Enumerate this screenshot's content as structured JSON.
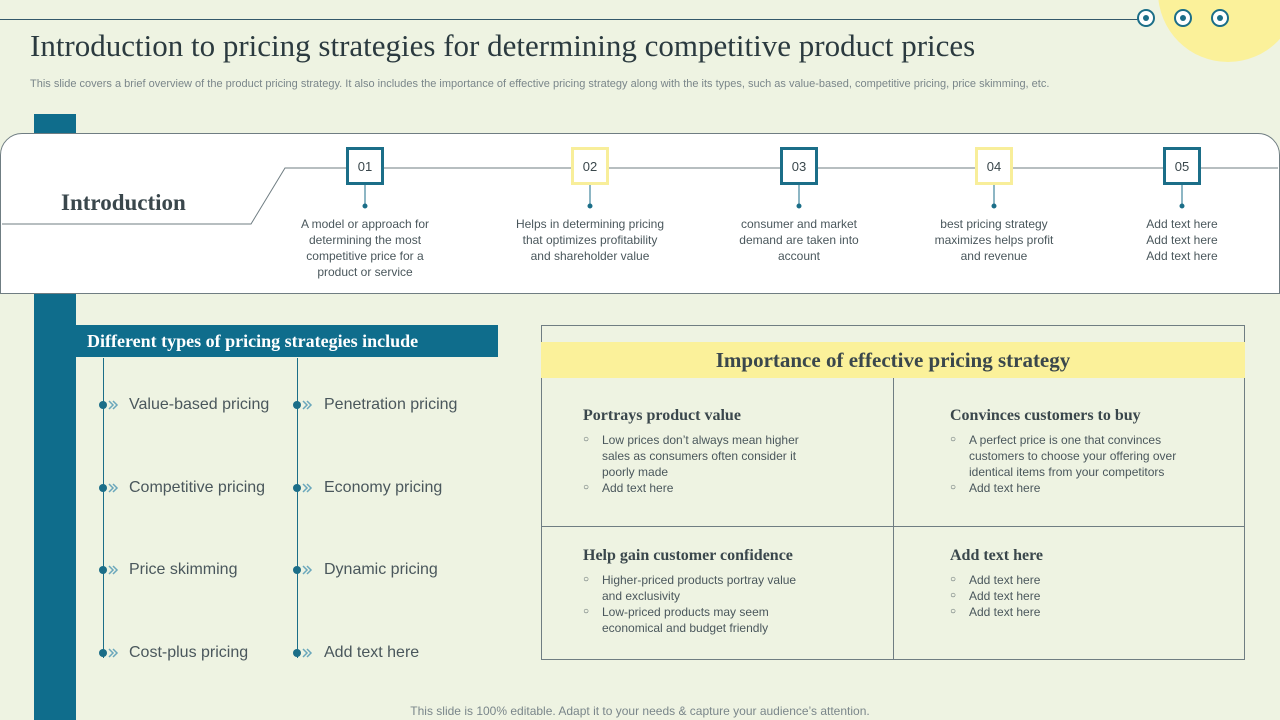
{
  "colors": {
    "teal": "#0f6d8c",
    "yellow": "#fbf19a",
    "background": "#eef3e2"
  },
  "title": "Introduction to pricing strategies for determining competitive product prices",
  "subtitle": "This slide covers a brief overview of the product pricing strategy. It also includes the importance of effective pricing strategy along with the its types, such as value-based, competitive pricing, price skimming, etc.",
  "introduction": {
    "label": "Introduction",
    "steps": [
      {
        "number": "01",
        "text": "A model or approach for determining the most competitive price for a product or service"
      },
      {
        "number": "02",
        "text": "Helps in determining pricing that optimizes profitability and shareholder value"
      },
      {
        "number": "03",
        "text": "consumer and market demand are taken into account"
      },
      {
        "number": "04",
        "text": "best pricing strategy maximizes helps profit and revenue"
      },
      {
        "number": "05",
        "text": "Add text here Add text here Add text here"
      }
    ]
  },
  "types": {
    "header": "Different types of pricing strategies include",
    "items": [
      "Value-based pricing",
      "Penetration pricing",
      "Competitive pricing",
      "Economy pricing",
      "Price skimming",
      "Dynamic pricing",
      "Cost-plus pricing",
      "Add text here"
    ],
    "bullet_icon": "chevron-right-icon"
  },
  "importance": {
    "header": "Importance of effective pricing strategy",
    "cells": [
      {
        "title": "Portrays product value",
        "points": [
          "Low prices don’t always mean higher sales as consumers often consider it poorly made",
          "Add text here"
        ]
      },
      {
        "title": "Convinces customers to buy",
        "points": [
          "A perfect price is one that convinces customers to choose your offering over identical items from your competitors",
          "Add text here"
        ]
      },
      {
        "title": "Help gain customer confidence",
        "points": [
          "Higher-priced products portray value and exclusivity",
          "Low-priced products may seem economical and budget friendly"
        ]
      },
      {
        "title": "Add text here",
        "points": [
          "Add text here",
          "Add text here",
          "Add text here"
        ]
      }
    ]
  },
  "footer": "This slide is 100% editable. Adapt it to your needs & capture your audience’s attention."
}
